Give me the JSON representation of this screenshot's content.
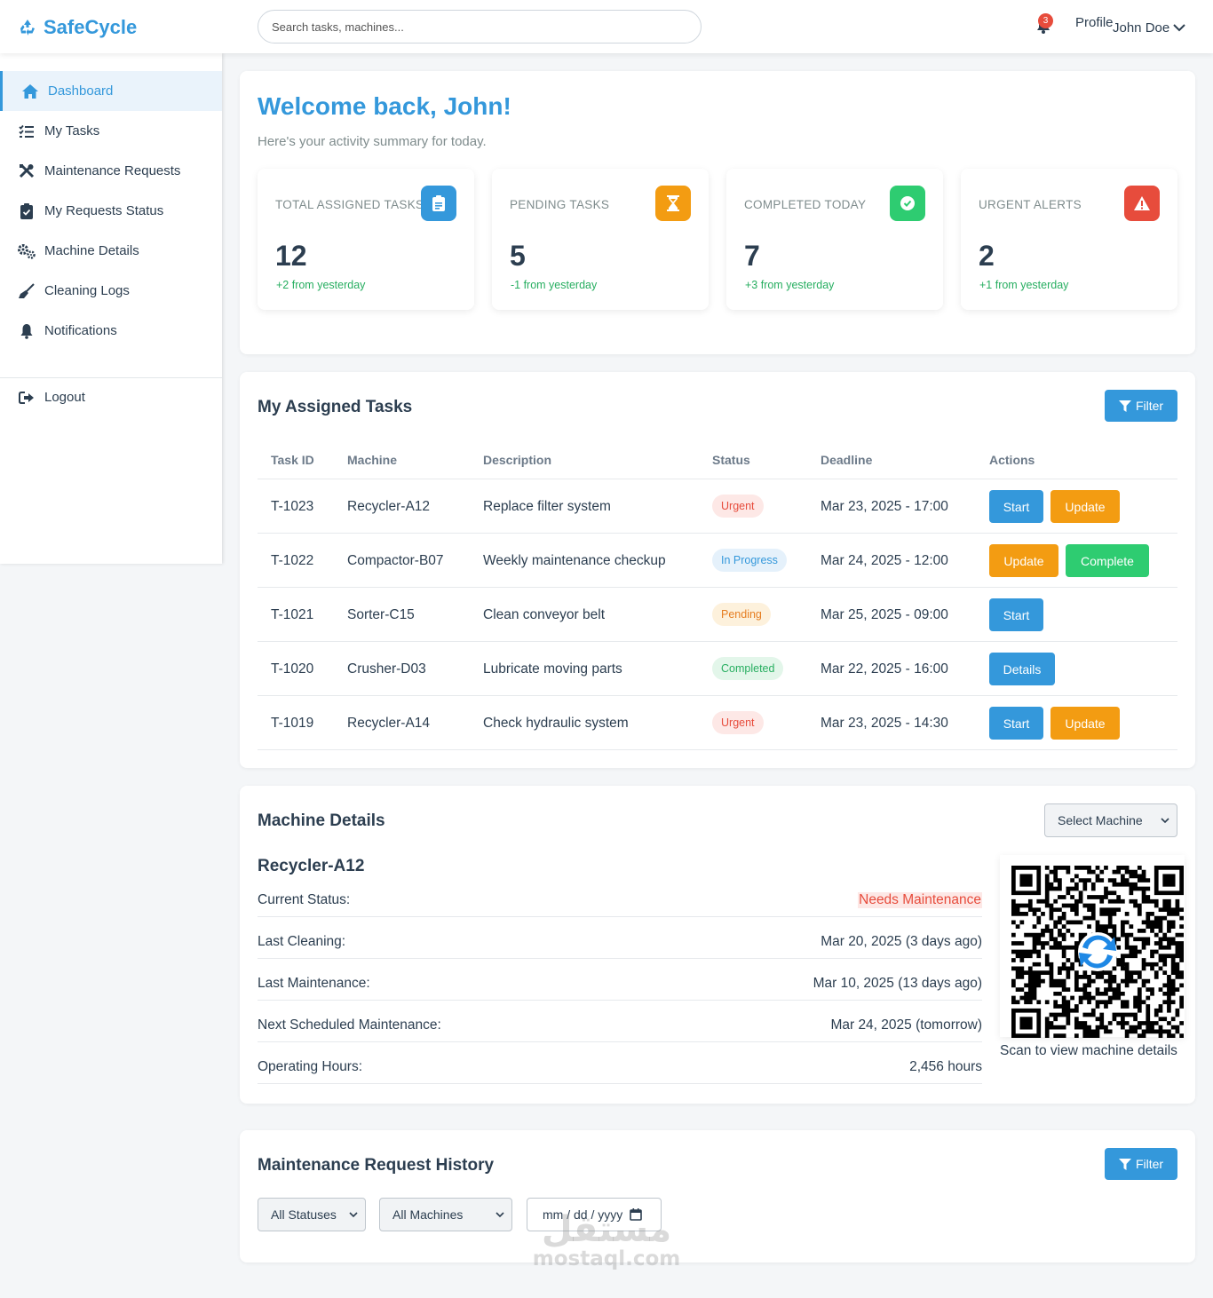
{
  "header": {
    "brand": "SafeCycle",
    "search_placeholder": "Search tasks, machines...",
    "notification_count": "3",
    "profile_label": "Profile",
    "user_name": "John Doe"
  },
  "sidebar": {
    "items": [
      {
        "label": "Dashboard",
        "icon": "home-icon",
        "active": true
      },
      {
        "label": "My Tasks",
        "icon": "list-check-icon"
      },
      {
        "label": "Maintenance Requests",
        "icon": "tools-icon"
      },
      {
        "label": "My Requests Status",
        "icon": "clipboard-check-icon"
      },
      {
        "label": "Machine Details",
        "icon": "cogs-icon"
      },
      {
        "label": "Cleaning Logs",
        "icon": "broom-icon"
      },
      {
        "label": "Notifications",
        "icon": "bell-icon"
      }
    ],
    "logout": "Logout"
  },
  "welcome": {
    "title": "Welcome back, John!",
    "subtitle": "Here's your activity summary for today."
  },
  "stats": [
    {
      "label": "TOTAL ASSIGNED TASKS",
      "value": "12",
      "change": "+2 from yesterday",
      "color": "#3498db",
      "icon": "clipboard-icon"
    },
    {
      "label": "PENDING TASKS",
      "value": "5",
      "change": "-1 from yesterday",
      "color": "#f39c12",
      "icon": "hourglass-icon"
    },
    {
      "label": "COMPLETED TODAY",
      "value": "7",
      "change": "+3 from yesterday",
      "color": "#2ecc71",
      "icon": "check-circle-icon"
    },
    {
      "label": "URGENT ALERTS",
      "value": "2",
      "change": "+1 from yesterday",
      "color": "#e74c3c",
      "icon": "warning-icon"
    }
  ],
  "tasks": {
    "title": "My Assigned Tasks",
    "filter_label": "Filter",
    "columns": [
      "Task ID",
      "Machine",
      "Description",
      "Status",
      "Deadline",
      "Actions"
    ],
    "rows": [
      {
        "id": "T-1023",
        "machine": "Recycler-A12",
        "description": "Replace filter system",
        "status": "Urgent",
        "deadline": "Mar 23, 2025 - 17:00",
        "actions": [
          "Start",
          "Update"
        ]
      },
      {
        "id": "T-1022",
        "machine": "Compactor-B07",
        "description": "Weekly maintenance checkup",
        "status": "In Progress",
        "deadline": "Mar 24, 2025 - 12:00",
        "actions": [
          "Update",
          "Complete"
        ]
      },
      {
        "id": "T-1021",
        "machine": "Sorter-C15",
        "description": "Clean conveyor belt",
        "status": "Pending",
        "deadline": "Mar 25, 2025 - 09:00",
        "actions": [
          "Start"
        ]
      },
      {
        "id": "T-1020",
        "machine": "Crusher-D03",
        "description": "Lubricate moving parts",
        "status": "Completed",
        "deadline": "Mar 22, 2025 - 16:00",
        "actions": [
          "Details"
        ]
      },
      {
        "id": "T-1019",
        "machine": "Recycler-A14",
        "description": "Check hydraulic system",
        "status": "Urgent",
        "deadline": "Mar 23, 2025 - 14:30",
        "actions": [
          "Start",
          "Update"
        ]
      }
    ]
  },
  "machine": {
    "title": "Machine Details",
    "select_label": "Select Machine",
    "name": "Recycler-A12",
    "details": [
      {
        "key": "Current Status:",
        "value": "Needs Maintenance"
      },
      {
        "key": "Last Cleaning:",
        "value": "Mar 20, 2025 (3 days ago)"
      },
      {
        "key": "Last Maintenance:",
        "value": "Mar 10, 2025 (13 days ago)"
      },
      {
        "key": "Next Scheduled Maintenance:",
        "value": "Mar 24, 2025 (tomorrow)"
      },
      {
        "key": "Operating Hours:",
        "value": "2,456 hours"
      }
    ],
    "qr_caption": "Scan to view machine details"
  },
  "history": {
    "title": "Maintenance Request History",
    "filter_label": "Filter",
    "status_select": "All Statuses",
    "machine_select": "All Machines",
    "date_placeholder": "mm / dd / yyyy"
  },
  "watermark": {
    "arabic": "مستقل",
    "latin": "mostaql.com"
  }
}
